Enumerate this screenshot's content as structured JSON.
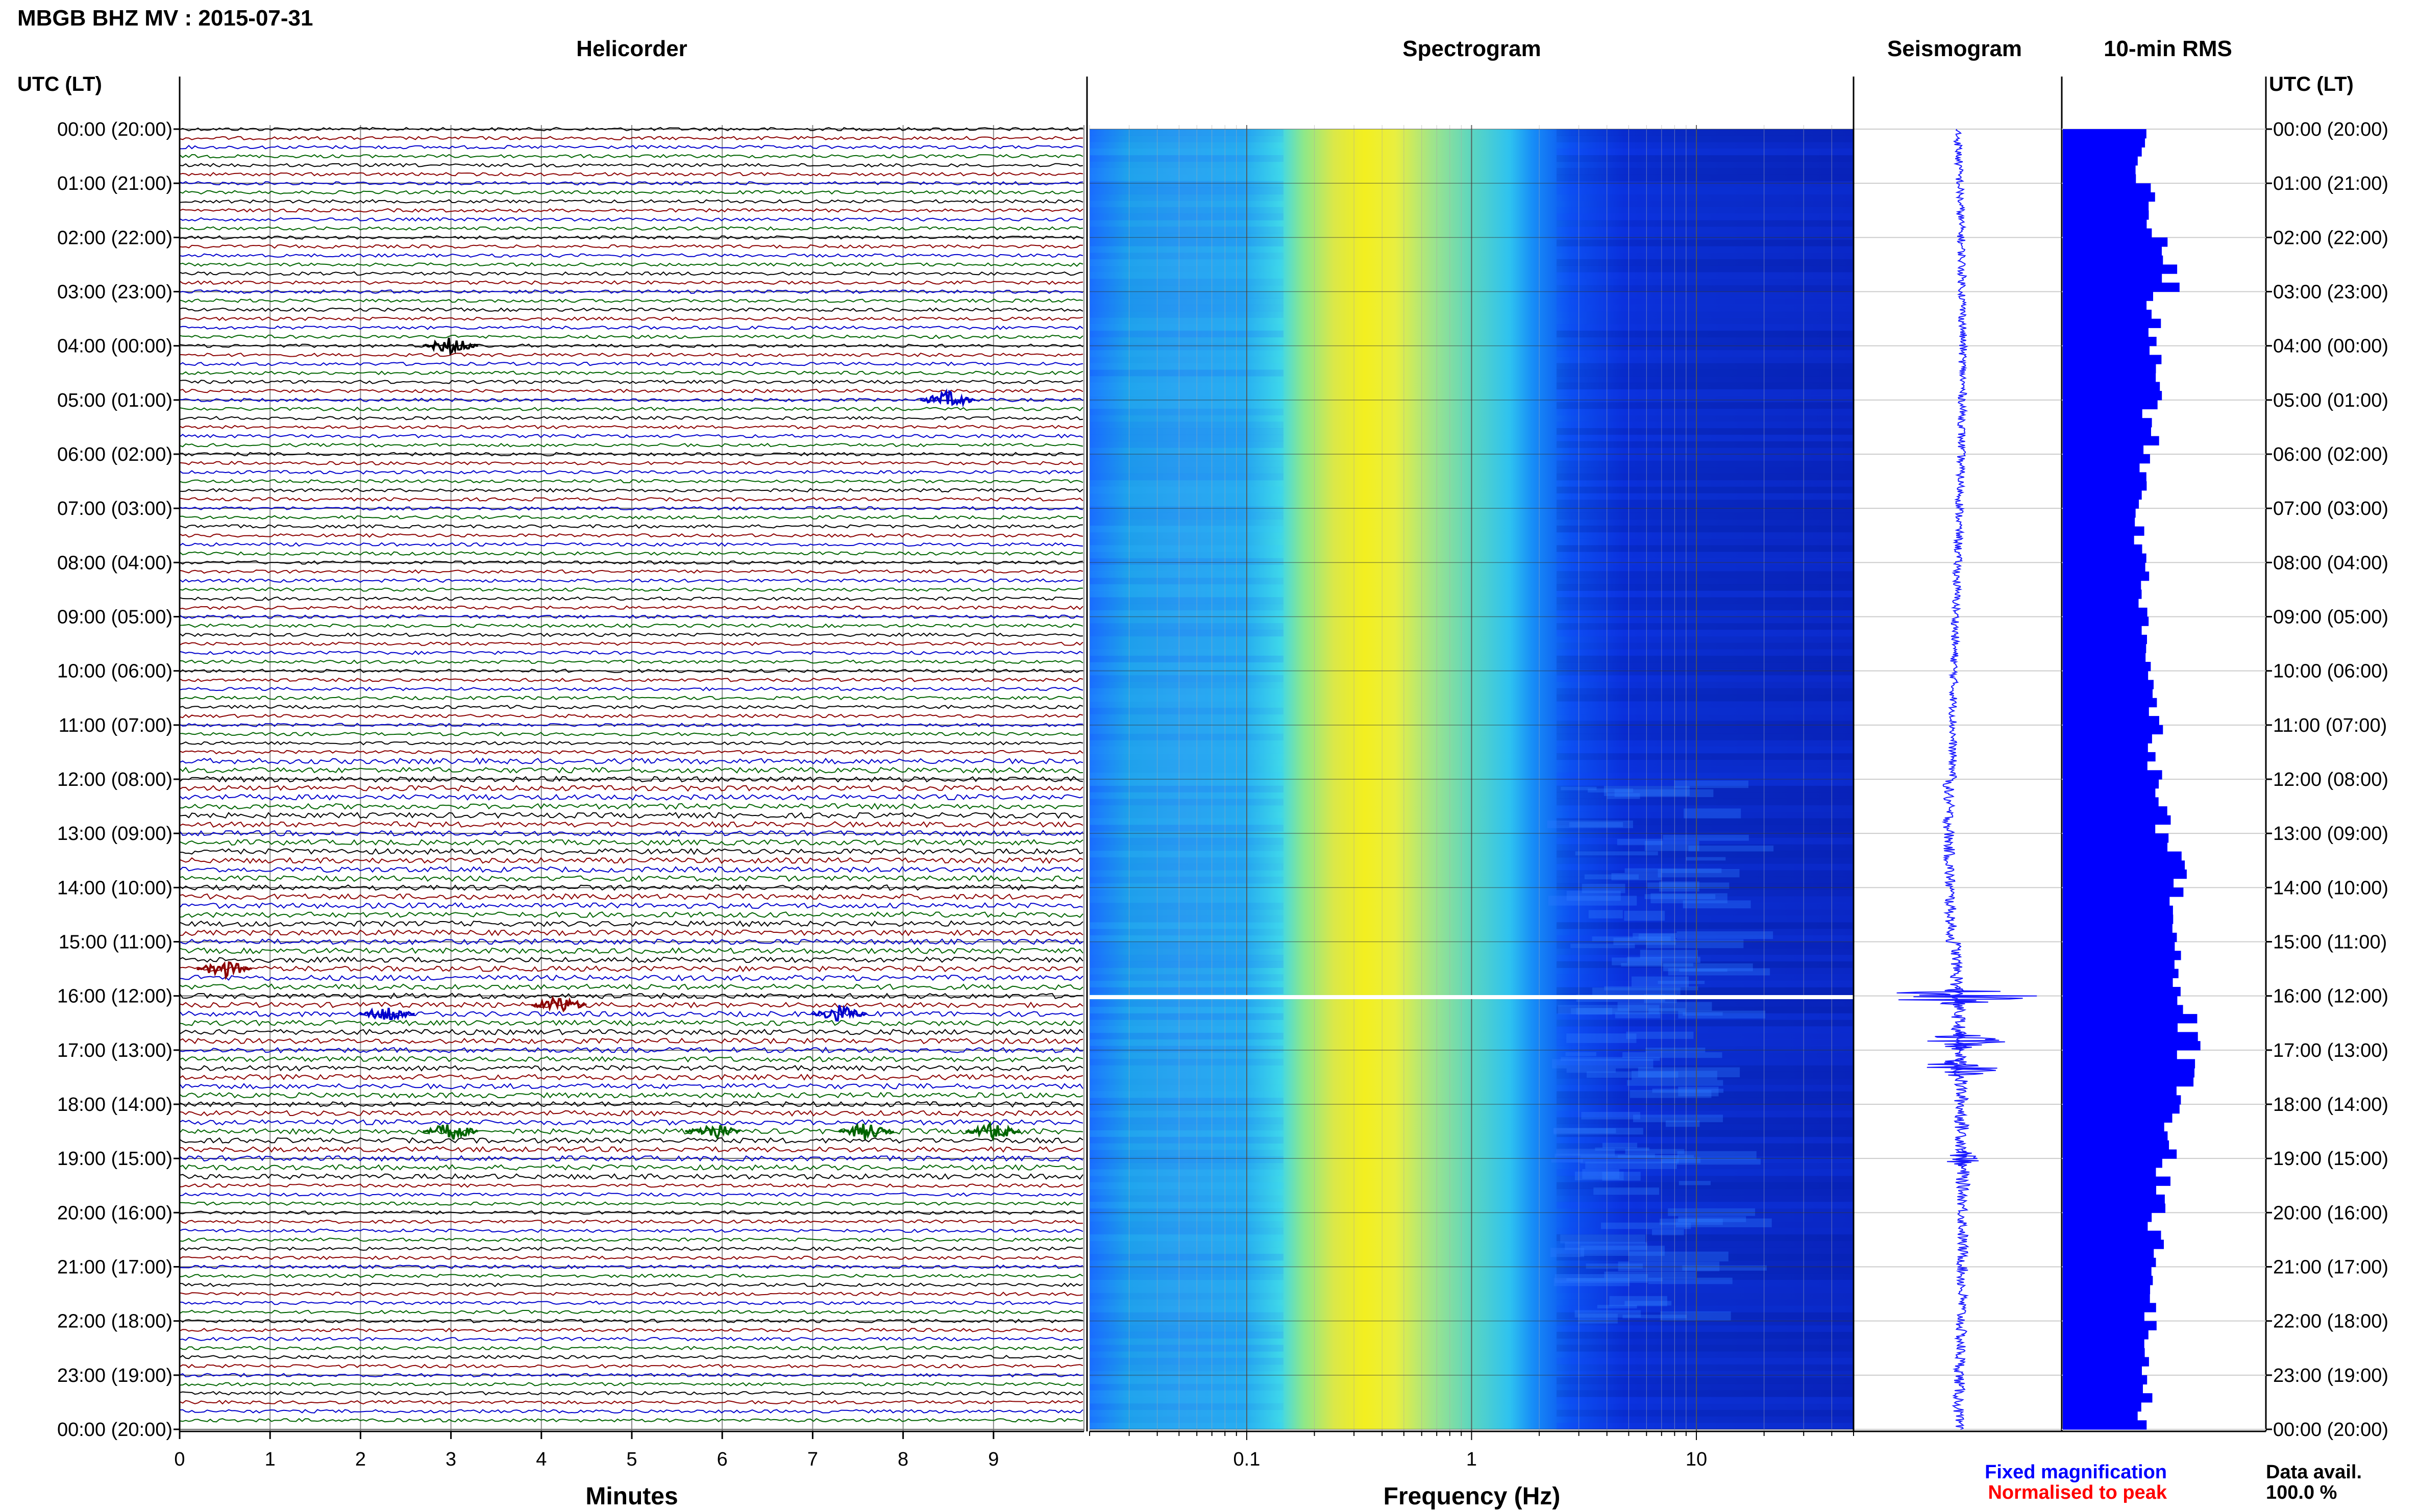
{
  "header": {
    "station_title": "MBGB BHZ MV : 2015-07-31",
    "left_axis_title": "UTC (LT)",
    "right_axis_title": "UTC (LT)"
  },
  "panels": {
    "helicorder_title": "Helicorder",
    "spectrogram_title": "Spectrogram",
    "seismogram_title": "Seismogram",
    "rms_title": "10-min RMS"
  },
  "time_labels": [
    "00:00 (20:00)",
    "01:00 (21:00)",
    "02:00 (22:00)",
    "03:00 (23:00)",
    "04:00 (00:00)",
    "05:00 (01:00)",
    "06:00 (02:00)",
    "07:00 (03:00)",
    "08:00 (04:00)",
    "09:00 (05:00)",
    "10:00 (06:00)",
    "11:00 (07:00)",
    "12:00 (08:00)",
    "13:00 (09:00)",
    "14:00 (10:00)",
    "15:00 (11:00)",
    "16:00 (12:00)",
    "17:00 (13:00)",
    "18:00 (14:00)",
    "19:00 (15:00)",
    "20:00 (16:00)",
    "21:00 (17:00)",
    "22:00 (18:00)",
    "23:00 (19:00)",
    "00:00 (20:00)"
  ],
  "footer": {
    "legend_fixed": "Fixed magnification",
    "legend_normalised": "Normalised to peak",
    "data_avail_label": "Data avail.",
    "data_avail_value": "100.0 %"
  },
  "colors": {
    "helicorder_traces": [
      "#000000",
      "#8b0000",
      "#0000cc",
      "#006400"
    ],
    "seismogram": "#1a1aff",
    "rms_bars": "#0000ff",
    "legend_fixed": "#0000ff",
    "legend_normalised": "#ff0000"
  },
  "chart_data": [
    {
      "type": "line",
      "name": "helicorder",
      "title": "Helicorder",
      "xlabel": "Minutes",
      "x_ticks": [
        "0",
        "1",
        "2",
        "3",
        "4",
        "5",
        "6",
        "7",
        "8",
        "9"
      ],
      "xlim": [
        0,
        10
      ],
      "rows": 144,
      "row_duration_min": 10,
      "events": [
        {
          "time": "04:00",
          "minute": 3.0
        },
        {
          "time": "05:00",
          "minute": 8.5
        },
        {
          "time": "15:30",
          "minute": 0.5
        },
        {
          "time": "16:10",
          "minute": 4.2
        },
        {
          "time": "16:20",
          "minute": 7.3
        },
        {
          "time": "16:20",
          "minute": 2.3
        },
        {
          "time": "18:30",
          "minute": 3.0
        },
        {
          "time": "18:30",
          "minute": 5.9
        },
        {
          "time": "18:30",
          "minute": 7.6
        },
        {
          "time": "18:30",
          "minute": 9.0
        }
      ]
    },
    {
      "type": "heatmap",
      "name": "spectrogram",
      "title": "Spectrogram",
      "xlabel": "Frequency (Hz)",
      "x_scale": "log",
      "x_ticks": [
        "0.1",
        "1",
        "10"
      ],
      "xlim": [
        0.02,
        50
      ],
      "colormap": [
        "#00008b",
        "#0000ff",
        "#00bfff",
        "#00ffff",
        "#7fff7f",
        "#ffff00",
        "#ffa500",
        "#ff0000"
      ],
      "peak_band_hz": [
        0.3,
        0.5
      ],
      "gap_time": "16:00"
    },
    {
      "type": "line",
      "name": "seismogram",
      "title": "Seismogram",
      "events": [
        {
          "time": "16:00",
          "relative_amplitude": 5.0
        },
        {
          "time": "16:50",
          "relative_amplitude": 2.5
        },
        {
          "time": "17:20",
          "relative_amplitude": 3.0
        },
        {
          "time": "19:00",
          "relative_amplitude": 1.2
        }
      ]
    },
    {
      "type": "bar",
      "name": "10-min RMS",
      "title": "10-min RMS",
      "orientation": "horizontal",
      "categories_note": "144 ten-minute windows 00:00-24:00 UTC",
      "hourly_mean_relative": [
        0.38,
        0.42,
        0.52,
        0.44,
        0.46,
        0.43,
        0.4,
        0.38,
        0.4,
        0.42,
        0.44,
        0.46,
        0.5,
        0.56,
        0.58,
        0.54,
        0.62,
        0.6,
        0.52,
        0.5,
        0.46,
        0.44,
        0.42,
        0.4
      ]
    }
  ]
}
